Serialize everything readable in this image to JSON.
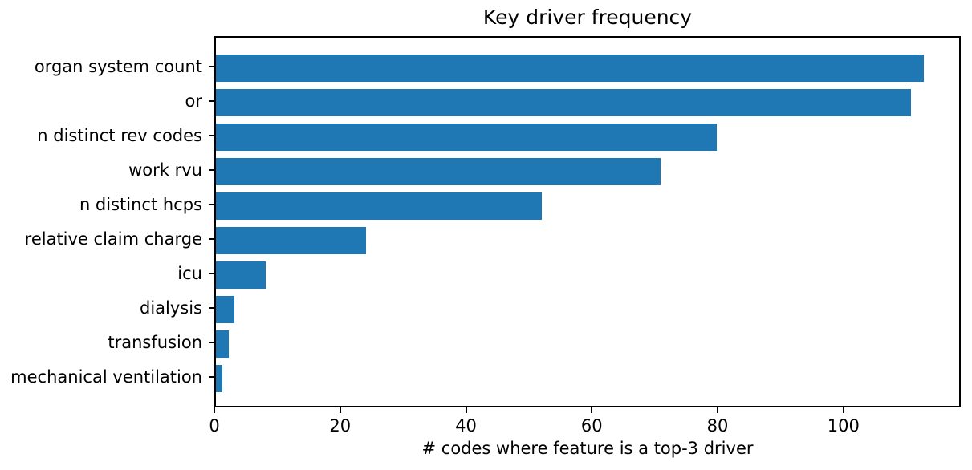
{
  "title": "Key driver frequency",
  "xlabel": "# codes where feature is a top-3 driver",
  "colors": {
    "bar": "#1f77b4",
    "text": "#000000",
    "spine": "#000000",
    "background": "#ffffff"
  },
  "chart_data": {
    "type": "bar",
    "orientation": "horizontal",
    "title": "Key driver frequency",
    "xlabel": "# codes where feature is a top-3 driver",
    "ylabel": "",
    "categories": [
      "organ system count",
      "or",
      "n distinct rev codes",
      "work rvu",
      "n distinct hcps",
      "relative claim charge",
      "icu",
      "dialysis",
      "transfusion",
      "mechanical ventilation"
    ],
    "values": [
      113,
      111,
      80,
      71,
      52,
      24,
      8,
      3,
      2,
      1
    ],
    "x_ticks": [
      0,
      20,
      40,
      60,
      80,
      100
    ],
    "xlim": [
      0,
      118.65
    ],
    "grid": false,
    "legend": null,
    "bar_color": "#1f77b4"
  }
}
